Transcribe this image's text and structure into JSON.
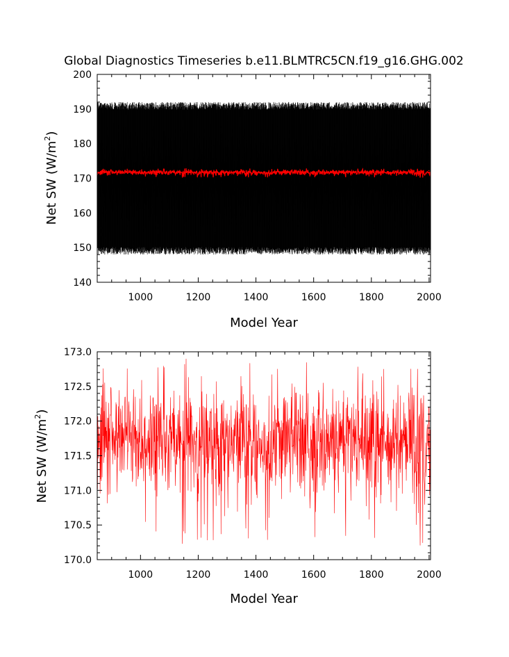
{
  "chart_data": [
    {
      "type": "line",
      "title": "Global Diagnostics Timeseries b.e11.BLMTRC5CN.f19_g16.GHG.002",
      "xlabel": "Model Year",
      "ylabel": "Net SW (W/m",
      "ylabel_sup": "2",
      "ylabel_end": ")",
      "xlim": [
        850,
        2005
      ],
      "ylim": [
        140,
        200
      ],
      "xticks": [
        "1000",
        "1200",
        "1400",
        "1600",
        "1800",
        "2000"
      ],
      "yticks": [
        "140",
        "150",
        "160",
        "170",
        "180",
        "190",
        "200"
      ],
      "grid": false,
      "series": [
        {
          "style": "monthly",
          "color": "#000000",
          "mean": 170,
          "range": [
            146,
            193
          ],
          "x_start": 850,
          "x_end": 2005
        },
        {
          "style": "annual",
          "color": "#ff0000",
          "mean": 171.7,
          "range": [
            170.2,
            172.9
          ],
          "x_start": 850,
          "x_end": 2005
        }
      ]
    },
    {
      "type": "line",
      "title": "",
      "xlabel": "Model Year",
      "ylabel": "Net SW (W/m",
      "ylabel_sup": "2",
      "ylabel_end": ")",
      "xlim": [
        850,
        2005
      ],
      "ylim": [
        170.0,
        173.0
      ],
      "xticks": [
        "1000",
        "1200",
        "1400",
        "1600",
        "1800",
        "2000"
      ],
      "yticks": [
        "170.0",
        "170.5",
        "171.0",
        "171.5",
        "172.0",
        "172.5",
        "173.0"
      ],
      "grid": false,
      "series": [
        {
          "style": "annual",
          "color": "#ff0000",
          "mean": 171.7,
          "range": [
            170.2,
            172.9
          ],
          "x_start": 850,
          "x_end": 2005
        }
      ]
    }
  ]
}
